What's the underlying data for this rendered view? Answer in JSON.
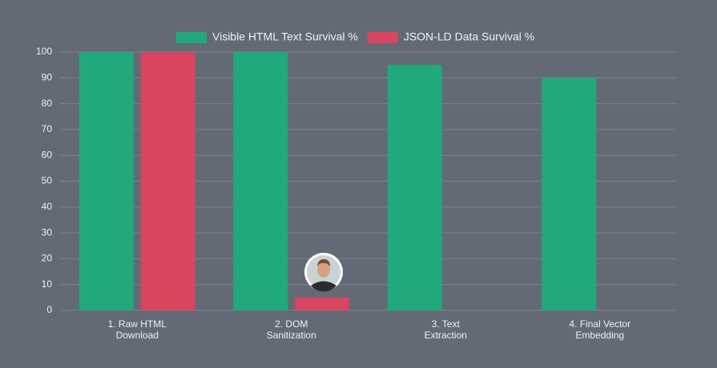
{
  "chart_data": {
    "type": "bar",
    "categories": [
      "1. Raw HTML Download",
      "2. DOM Sanitization",
      "3. Text Extraction",
      "4. Final Vector Embedding"
    ],
    "series": [
      {
        "name": "Visible HTML Text Survival %",
        "color": "#21a97b",
        "values": [
          100,
          100,
          95,
          90
        ]
      },
      {
        "name": "JSON-LD Data Survival %",
        "color": "#d9455f",
        "values": [
          100,
          5,
          0,
          0
        ]
      }
    ],
    "ylim": [
      0,
      100
    ],
    "yticks": [
      0,
      10,
      20,
      30,
      40,
      50,
      60,
      70,
      80,
      90,
      100
    ],
    "grid": true,
    "legend": "top"
  }
}
